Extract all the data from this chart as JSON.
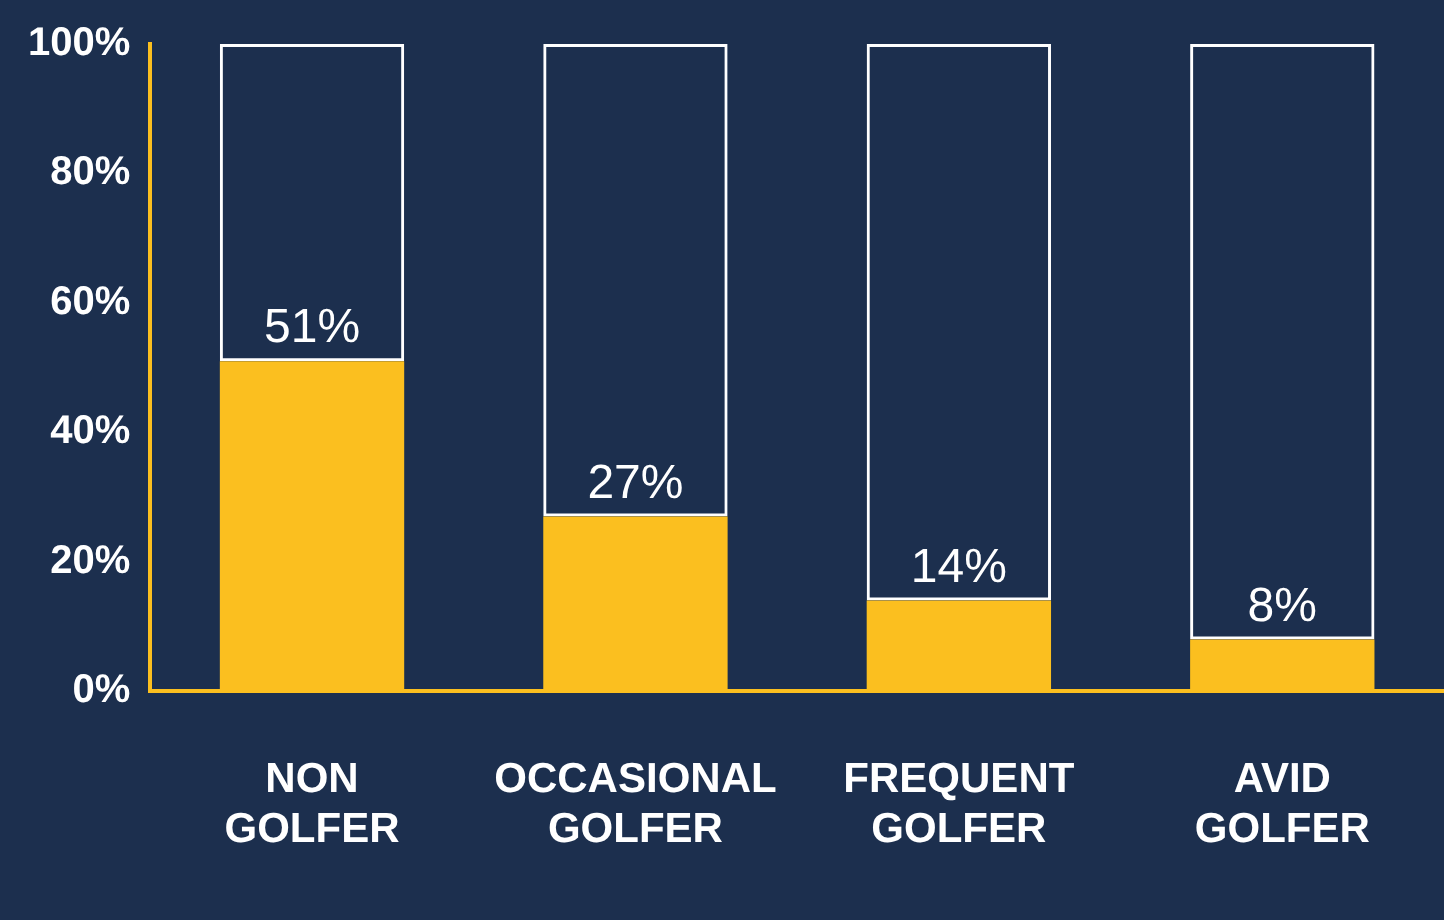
{
  "chart_data": {
    "type": "bar",
    "stacked": true,
    "categories": [
      "NON GOLFER",
      "OCCASIONAL GOLFER",
      "FREQUENT GOLFER",
      "AVID GOLFER"
    ],
    "series": [
      {
        "color": "#fbbf1f",
        "values": [
          51,
          27,
          14,
          8
        ],
        "value_labels": [
          "51%",
          "27%",
          "14%",
          "8%"
        ]
      },
      {
        "color": "#ffffff",
        "values": [
          49,
          73,
          86,
          92
        ]
      }
    ],
    "ylim": [
      0,
      100
    ],
    "yticks": [
      {
        "value": 0,
        "label": "0%"
      },
      {
        "value": 20,
        "label": "20%"
      },
      {
        "value": 40,
        "label": "40%"
      },
      {
        "value": 60,
        "label": "60%"
      },
      {
        "value": 80,
        "label": "80%"
      },
      {
        "value": 100,
        "label": "100%"
      }
    ],
    "grid": false,
    "legend": false
  }
}
